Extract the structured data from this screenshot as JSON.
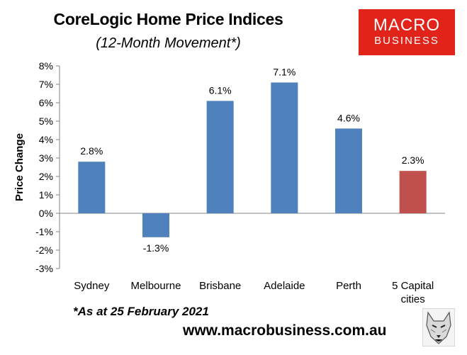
{
  "header": {
    "title": "CoreLogic Home Price Indices",
    "subtitle": "(12-Month Movement*)"
  },
  "logo": {
    "line1": "MACRO",
    "line2": "BUSINESS",
    "color": "#e2231a",
    "icon": "macrobusiness-logo"
  },
  "footer": {
    "footnote": "*As at 25 February 2021",
    "website": "www.macrobusiness.com.au",
    "mascot_icon": "wolf-head-icon"
  },
  "chart_data": {
    "type": "bar",
    "categories": [
      "Sydney",
      "Melbourne",
      "Brisbane",
      "Adelaide",
      "Perth",
      "5 Capital cities"
    ],
    "values": [
      2.8,
      -1.3,
      6.1,
      7.1,
      4.6,
      2.3
    ],
    "data_labels": [
      "2.8%",
      "-1.3%",
      "6.1%",
      "7.1%",
      "4.6%",
      "2.3%"
    ],
    "bar_colors": [
      "#4f81bd",
      "#4f81bd",
      "#4f81bd",
      "#4f81bd",
      "#4f81bd",
      "#c0504d"
    ],
    "ylabel": "Price Change",
    "xlabel": "",
    "ylim": [
      -3,
      8
    ],
    "yticks": [
      8,
      7,
      6,
      5,
      4,
      3,
      2,
      1,
      0,
      -1,
      -2,
      -3
    ],
    "ytick_labels": [
      "8%",
      "7%",
      "6%",
      "5%",
      "4%",
      "3%",
      "2%",
      "1%",
      "0%",
      "-1%",
      "-2%",
      "-3%"
    ],
    "grid": false,
    "legend": "none"
  }
}
